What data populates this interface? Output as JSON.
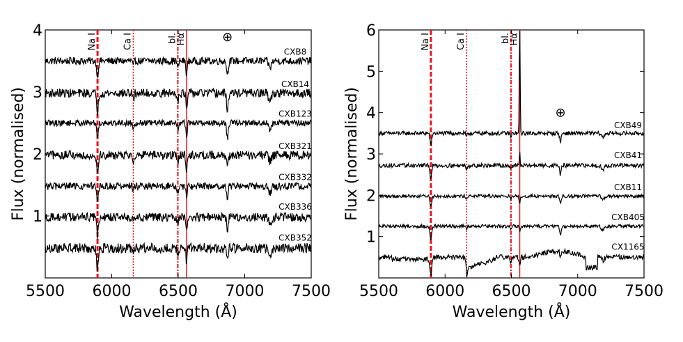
{
  "chart_data": [
    {
      "type": "line",
      "xlabel": "Wavelength (Å)",
      "ylabel": "Flux (normalised)",
      "xlim": [
        5500,
        7500
      ],
      "ylim": [
        0,
        4
      ],
      "x_ticks": [
        5500,
        6000,
        6500,
        7000,
        7500
      ],
      "y_ticks": [
        1,
        2,
        3,
        4
      ],
      "x_tick_labels": [
        "5500",
        "6000",
        "6500",
        "7000",
        "7500"
      ],
      "y_tick_labels": [
        "1",
        "2",
        "3",
        "4"
      ],
      "line_markers": [
        {
          "label": "Na I",
          "wavelength": 5893,
          "style": "dashed",
          "color": "#e8141c",
          "width": 3
        },
        {
          "label": "Ca I",
          "wavelength": 6162,
          "style": "dotted",
          "color": "#e8141c",
          "width": 1.5
        },
        {
          "label": "bl.",
          "wavelength": 6497,
          "style": "dashdot",
          "color": "#e8141c",
          "width": 2
        },
        {
          "label": "Hα",
          "wavelength": 6563,
          "style": "solid",
          "color": "#e8141c",
          "width": 1.5
        }
      ],
      "telluric": {
        "symbol": "⊕",
        "wavelength": 6870,
        "y": 3.82
      },
      "series": [
        {
          "name": "CXB8",
          "level": 3.5,
          "noise": 0.06,
          "slope": 0,
          "na_depth": 0.25,
          "ha_depth": 0.22,
          "ha_emission": 0,
          "tell_depth": 0.22,
          "ca_depth": 0.1,
          "bl_depth": 0.12,
          "label_y": 3.6
        },
        {
          "name": "CXB14",
          "level": 2.98,
          "noise": 0.07,
          "slope": 0,
          "na_depth": 0.3,
          "ha_depth": 0.3,
          "ha_emission": 0,
          "tell_depth": 0.28,
          "ca_depth": 0.12,
          "bl_depth": 0.12,
          "label_y": 3.08
        },
        {
          "name": "CXB123",
          "level": 2.5,
          "noise": 0.05,
          "slope": 0,
          "na_depth": 0.22,
          "ha_depth": 0.2,
          "ha_emission": 0,
          "tell_depth": 0.25,
          "ca_depth": 0.08,
          "bl_depth": 0.1,
          "label_y": 2.6
        },
        {
          "name": "CXB321",
          "level": 1.98,
          "noise": 0.07,
          "slope": 0,
          "na_depth": 0.3,
          "ha_depth": 0.25,
          "ha_emission": 0,
          "tell_depth": 0.2,
          "ca_depth": 0.1,
          "bl_depth": 0.12,
          "label_y": 2.08
        },
        {
          "name": "CXB332",
          "level": 1.48,
          "noise": 0.06,
          "slope": 0,
          "na_depth": 0.28,
          "ha_depth": 0.2,
          "ha_emission": 0,
          "tell_depth": 0.22,
          "ca_depth": 0.08,
          "bl_depth": 0.1,
          "label_y": 1.58
        },
        {
          "name": "CXB336",
          "level": 0.98,
          "noise": 0.07,
          "slope": 0,
          "na_depth": 0.3,
          "ha_depth": 0.22,
          "ha_emission": 0,
          "tell_depth": 0.2,
          "ca_depth": 0.08,
          "bl_depth": 0.12,
          "label_y": 1.1
        },
        {
          "name": "CXB352",
          "level": 0.48,
          "noise": 0.08,
          "slope": 0,
          "na_depth": 0.35,
          "ha_depth": 0.25,
          "ha_emission": 0,
          "tell_depth": 0.22,
          "ca_depth": 0.1,
          "bl_depth": 0.12,
          "label_y": 0.6
        }
      ]
    },
    {
      "type": "line",
      "xlabel": "Wavelength (Å)",
      "ylabel": "Flux (normalised)",
      "xlim": [
        5500,
        7500
      ],
      "ylim": [
        0,
        6
      ],
      "x_ticks": [
        5500,
        6000,
        6500,
        7000,
        7500
      ],
      "y_ticks": [
        1,
        2,
        3,
        4,
        5,
        6
      ],
      "x_tick_labels": [
        "5500",
        "6000",
        "6500",
        "7000",
        "7500"
      ],
      "y_tick_labels": [
        "1",
        "2",
        "3",
        "4",
        "5",
        "6"
      ],
      "line_markers": [
        {
          "label": "Na I",
          "wavelength": 5893,
          "style": "dashed",
          "color": "#e8141c",
          "width": 3
        },
        {
          "label": "Ca I",
          "wavelength": 6162,
          "style": "dotted",
          "color": "#e8141c",
          "width": 1.5
        },
        {
          "label": "bl.",
          "wavelength": 6497,
          "style": "dashdot",
          "color": "#e8141c",
          "width": 2
        },
        {
          "label": "Hα",
          "wavelength": 6563,
          "style": "solid",
          "color": "#e8141c",
          "width": 1.5
        }
      ],
      "telluric": {
        "symbol": "⊕",
        "wavelength": 6870,
        "y": 3.9
      },
      "series": [
        {
          "name": "CXB49",
          "level": 3.5,
          "noise": 0.05,
          "slope": 0,
          "na_depth": 0.3,
          "ha_depth": 0,
          "ha_emission": 2.8,
          "tell_depth": 0.2,
          "ca_depth": 0.1,
          "bl_depth": 0.1,
          "label_y": 3.62
        },
        {
          "name": "CXB41",
          "level": 2.72,
          "noise": 0.05,
          "slope": 0,
          "na_depth": 0.3,
          "ha_depth": 0,
          "ha_emission": 0.3,
          "tell_depth": 0.22,
          "ca_depth": 0.08,
          "bl_depth": 0.08,
          "label_y": 2.9
        },
        {
          "name": "CXB11",
          "level": 1.98,
          "noise": 0.04,
          "slope": 0,
          "na_depth": 0.25,
          "ha_depth": 0.15,
          "ha_emission": 0,
          "tell_depth": 0.18,
          "ca_depth": 0.06,
          "bl_depth": 0.08,
          "label_y": 2.12
        },
        {
          "name": "CXB405",
          "level": 1.25,
          "noise": 0.04,
          "slope": 0,
          "na_depth": 0.35,
          "ha_depth": 0.12,
          "ha_emission": 0,
          "tell_depth": 0.2,
          "ca_depth": 0.06,
          "bl_depth": 0.08,
          "label_y": 1.4
        },
        {
          "name": "CX1165",
          "level": 0.5,
          "noise": 0.06,
          "slope": 0,
          "na_depth": 0.45,
          "ha_depth": 0.2,
          "ha_emission": 0,
          "tell_depth": 0.15,
          "ca_depth": 0.3,
          "bl_depth": 0.15,
          "label_y": 0.68,
          "bands": true
        }
      ]
    }
  ]
}
